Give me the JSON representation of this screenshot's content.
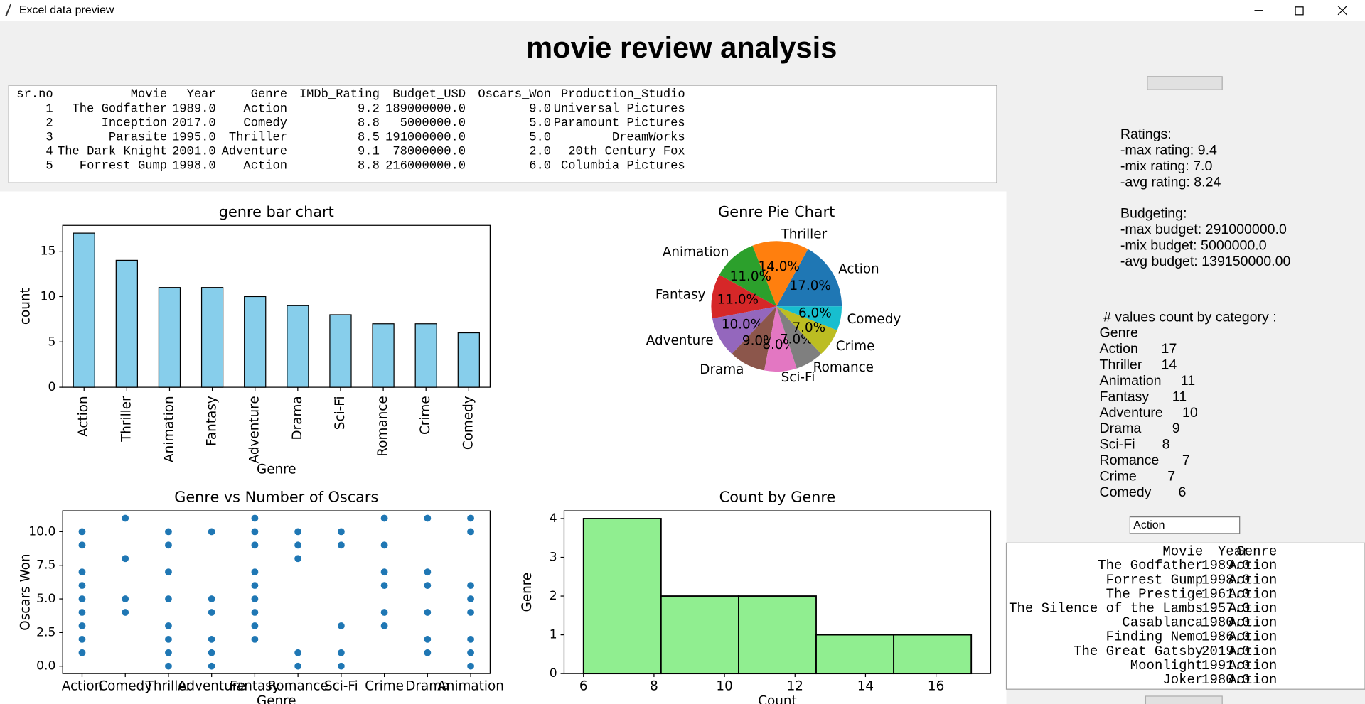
{
  "window": {
    "title": "Excel data preview"
  },
  "header": {
    "title": "movie review analysis"
  },
  "preview_table": {
    "columns": [
      "sr.no",
      "Movie",
      "Year",
      "Genre",
      "IMDb_Rating",
      "Budget_USD",
      "Oscars_Won",
      "Production_Studio"
    ],
    "rows": [
      [
        "1",
        "The Godfather",
        "1989.0",
        "Action",
        "9.2",
        "189000000.0",
        "9.0",
        "Universal Pictures"
      ],
      [
        "2",
        "Inception",
        "2017.0",
        "Comedy",
        "8.8",
        "5000000.0",
        "5.0",
        "Paramount Pictures"
      ],
      [
        "3",
        "Parasite",
        "1995.0",
        "Thriller",
        "8.5",
        "191000000.0",
        "5.0",
        "DreamWorks"
      ],
      [
        "4",
        "The Dark Knight",
        "2001.0",
        "Adventure",
        "9.1",
        "78000000.0",
        "2.0",
        "20th Century Fox"
      ],
      [
        "5",
        "Forrest Gump",
        "1998.0",
        "Action",
        "8.8",
        "216000000.0",
        "6.0",
        "Columbia Pictures"
      ]
    ]
  },
  "chart_data": [
    {
      "type": "bar",
      "title": "genre bar chart",
      "xlabel": "Genre",
      "ylabel": "count",
      "categories": [
        "Action",
        "Thriller",
        "Animation",
        "Fantasy",
        "Adventure",
        "Drama",
        "Sci-Fi",
        "Romance",
        "Crime",
        "Comedy"
      ],
      "values": [
        17,
        14,
        11,
        11,
        10,
        9,
        8,
        7,
        7,
        6
      ],
      "color": "#87ceeb",
      "ylim": [
        0,
        17.85
      ],
      "yticks": [
        0,
        5,
        10,
        15
      ]
    },
    {
      "type": "pie",
      "title": "Genre Pie Chart",
      "categories": [
        "Action",
        "Thriller",
        "Animation",
        "Fantasy",
        "Adventure",
        "Drama",
        "Sci-Fi",
        "Romance",
        "Crime",
        "Comedy"
      ],
      "values": [
        17,
        14,
        11,
        11,
        10,
        9,
        8,
        7,
        7,
        6
      ],
      "value_labels": [
        "17.0%",
        "14.0%",
        "11.0%",
        "11.0%",
        "10.0%",
        "9.0%",
        "8.0%",
        "7.0%",
        "7.0%",
        "6.0%"
      ],
      "colors": [
        "#1f77b4",
        "#ff7f0e",
        "#2ca02c",
        "#d62728",
        "#9467bd",
        "#8c564b",
        "#e377c2",
        "#7f7f7f",
        "#bcbd22",
        "#17becf"
      ]
    },
    {
      "type": "scatter",
      "title": "Genre vs Number of Oscars",
      "xlabel": "Genre",
      "ylabel": "Oscars Won",
      "categories": [
        "Action",
        "Comedy",
        "Thriller",
        "Adventure",
        "Fantasy",
        "Romance",
        "Sci-Fi",
        "Crime",
        "Drama",
        "Animation"
      ],
      "x": [
        "Action",
        "Action",
        "Action",
        "Action",
        "Action",
        "Action",
        "Action",
        "Action",
        "Action",
        "Comedy",
        "Comedy",
        "Comedy",
        "Comedy",
        "Thriller",
        "Thriller",
        "Thriller",
        "Thriller",
        "Thriller",
        "Thriller",
        "Thriller",
        "Thriller",
        "Adventure",
        "Adventure",
        "Adventure",
        "Adventure",
        "Adventure",
        "Adventure",
        "Fantasy",
        "Fantasy",
        "Fantasy",
        "Fantasy",
        "Fantasy",
        "Fantasy",
        "Fantasy",
        "Fantasy",
        "Fantasy",
        "Romance",
        "Romance",
        "Romance",
        "Romance",
        "Romance",
        "Sci-Fi",
        "Sci-Fi",
        "Sci-Fi",
        "Sci-Fi",
        "Sci-Fi",
        "Crime",
        "Crime",
        "Crime",
        "Crime",
        "Crime",
        "Crime",
        "Drama",
        "Drama",
        "Drama",
        "Drama",
        "Drama",
        "Drama",
        "Animation",
        "Animation",
        "Animation",
        "Animation",
        "Animation",
        "Animation",
        "Animation",
        "Animation"
      ],
      "values": [
        10,
        9,
        7,
        6,
        5,
        4,
        3,
        2,
        1,
        11,
        8,
        5,
        4,
        10,
        9,
        7,
        5,
        3,
        2,
        1,
        0,
        10,
        5,
        4,
        2,
        1,
        0,
        11,
        10,
        9,
        7,
        6,
        5,
        4,
        3,
        2,
        10,
        9,
        8,
        1,
        0,
        10,
        9,
        3,
        1,
        0,
        11,
        9,
        7,
        6,
        4,
        3,
        11,
        7,
        6,
        4,
        2,
        1,
        11,
        10,
        6,
        5,
        4,
        2,
        1,
        0
      ],
      "color": "#1f77b4",
      "xlim": [
        -0.45,
        9.45
      ],
      "ylim": [
        -0.55,
        11.55
      ],
      "yticks": [
        {
          "value": 0,
          "label": "0.0"
        },
        {
          "value": 2.5,
          "label": "2.5"
        },
        {
          "value": 5,
          "label": "5.0"
        },
        {
          "value": 7.5,
          "label": "7.5"
        },
        {
          "value": 10,
          "label": "10.0"
        }
      ]
    },
    {
      "type": "histogram",
      "title": "Count by Genre",
      "xlabel": "Count",
      "ylabel": "Genre",
      "bins": [
        6,
        8.2,
        10.4,
        12.6,
        14.8,
        17
      ],
      "values": [
        4,
        2,
        2,
        1,
        1
      ],
      "color": "#90ee90",
      "xlim": [
        5.45,
        17.55
      ],
      "ylim": [
        0,
        4.2
      ],
      "xticks": [
        6,
        8,
        10,
        12,
        14,
        16
      ],
      "yticks": [
        0,
        1,
        2,
        3,
        4
      ]
    }
  ],
  "summary": {
    "ratings": [
      "Ratings:",
      "-max rating: 9.4",
      "-mix rating: 7.0",
      "-avg rating: 8.24"
    ],
    "budgeting": [
      "Budgeting:",
      "-max budget: 291000000.0",
      "-mix budget: 5000000.0",
      "-avg budget: 139150000.00"
    ],
    "counts": [
      " # values count by category :",
      "Genre",
      "Action      17",
      "Thriller     14",
      "Animation     11",
      "Fantasy      11",
      "Adventure     10",
      "Drama        9",
      "Sci-Fi       8",
      "Romance      7",
      "Crime        7",
      "Comedy       6"
    ]
  },
  "filter": {
    "entry": "Action",
    "columns": [
      "Movie",
      "Year",
      "Genre"
    ],
    "rows": [
      [
        "The Godfather",
        "1989.0",
        "Action"
      ],
      [
        "Forrest Gump",
        "1998.0",
        "Action"
      ],
      [
        "The Prestige",
        "1961.0",
        "Action"
      ],
      [
        "The Silence of the Lambs",
        "1957.0",
        "Action"
      ],
      [
        "Casablanca",
        "1980.0",
        "Action"
      ],
      [
        "Finding Nemo",
        "1986.0",
        "Action"
      ],
      [
        "The Great Gatsby",
        "2019.0",
        "Action"
      ],
      [
        "Moonlight",
        "1991.0",
        "Action"
      ],
      [
        "Joker",
        "1980.0",
        "Action"
      ]
    ]
  }
}
